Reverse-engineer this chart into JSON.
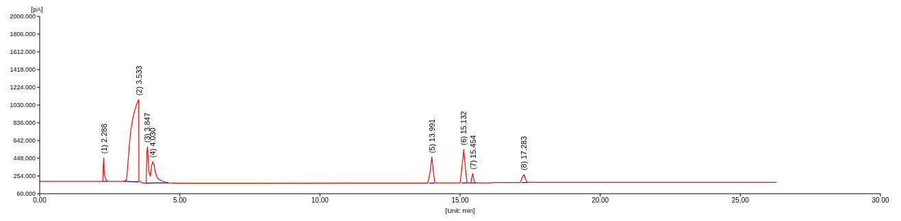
{
  "chart_data": {
    "type": "line",
    "ylabel": "[pA]",
    "xlabel": "[Unit: min]",
    "xlim": [
      0,
      30
    ],
    "ylim": [
      60,
      2000
    ],
    "xticks": [
      {
        "value": 0,
        "label": "0.00"
      },
      {
        "value": 5,
        "label": "5.00"
      },
      {
        "value": 10,
        "label": "10.00"
      },
      {
        "value": 15,
        "label": "15.00"
      },
      {
        "value": 20,
        "label": "20.00"
      },
      {
        "value": 25,
        "label": "25.00"
      },
      {
        "value": 30,
        "label": "30.00"
      }
    ],
    "yticks": [
      {
        "value": 60,
        "label": "60.000"
      },
      {
        "value": 254,
        "label": "254.000"
      },
      {
        "value": 448,
        "label": "448.000"
      },
      {
        "value": 642,
        "label": "642.000"
      },
      {
        "value": 836,
        "label": "836.000"
      },
      {
        "value": 1030,
        "label": "1030.000"
      },
      {
        "value": 1224,
        "label": "1224.000"
      },
      {
        "value": 1418,
        "label": "1418.000"
      },
      {
        "value": 1612,
        "label": "1612.000"
      },
      {
        "value": 1806,
        "label": "1806.000"
      },
      {
        "value": 2000,
        "label": "2000.000"
      }
    ],
    "grid": false,
    "marker": "none",
    "line_style": "solid",
    "series": [
      {
        "color": "#ff0000",
        "x": [
          0,
          2.25,
          2.27,
          2.288,
          2.3,
          2.35,
          2.42,
          3.0,
          3.05,
          3.1,
          3.15,
          3.2,
          3.25,
          3.3,
          3.35,
          3.4,
          3.45,
          3.5,
          3.533,
          3.54,
          3.6,
          3.65,
          3.8,
          3.82,
          3.847,
          3.87,
          3.9,
          3.95,
          3.98,
          4.03,
          4.08,
          4.12,
          4.2,
          4.35,
          4.5,
          4.6,
          5.0,
          8.0,
          13.85,
          13.93,
          13.991,
          14.05,
          14.1,
          15.0,
          15.05,
          15.132,
          15.2,
          15.25,
          15.38,
          15.42,
          15.454,
          15.5,
          15.55,
          16.1,
          16.2,
          17.15,
          17.22,
          17.283,
          17.33,
          17.4,
          26.3
        ],
        "values": [
          195,
          195,
          380,
          452,
          300,
          220,
          195,
          195,
          205,
          210,
          400,
          600,
          750,
          850,
          920,
          980,
          1030,
          1070,
          1087,
          200,
          190,
          180,
          175,
          500,
          573,
          450,
          300,
          250,
          350,
          409,
          380,
          300,
          230,
          200,
          185,
          178,
          175,
          175,
          177,
          300,
          460,
          300,
          178,
          178,
          300,
          545,
          300,
          178,
          178,
          240,
          281,
          200,
          178,
          178,
          182,
          182,
          240,
          270,
          220,
          184,
          184
        ]
      },
      {
        "color": "#0000ff",
        "x": [
          2.25,
          2.42,
          2.7,
          3.0,
          3.5,
          3.54,
          3.7,
          3.8,
          4.03,
          4.6,
          9,
          13.9,
          14.08,
          14.5,
          15.05,
          15.25,
          15.3,
          15.38,
          15.55,
          16.5,
          17.2,
          17.4
        ],
        "values": [
          195,
          195,
          null,
          195,
          190,
          190,
          null,
          175,
          178,
          178,
          null,
          176,
          176,
          null,
          178,
          178,
          null,
          178,
          178,
          null,
          182,
          182
        ]
      }
    ],
    "annotations": [
      {
        "text": "(1) 2.288",
        "x": 2.288,
        "y": 452
      },
      {
        "text": "(2) 3.533",
        "x": 3.533,
        "y": 1087
      },
      {
        "text": "(3) 3.847",
        "x": 3.847,
        "y": 573
      },
      {
        "text": "(4) 4.030",
        "x": 4.03,
        "y": 409
      },
      {
        "text": "(5) 13.991",
        "x": 13.991,
        "y": 460
      },
      {
        "text": "(6) 15.132",
        "x": 15.132,
        "y": 545
      },
      {
        "text": "(7) 15.454",
        "x": 15.454,
        "y": 281
      },
      {
        "text": "(8) 17.283",
        "x": 17.283,
        "y": 270
      }
    ]
  }
}
